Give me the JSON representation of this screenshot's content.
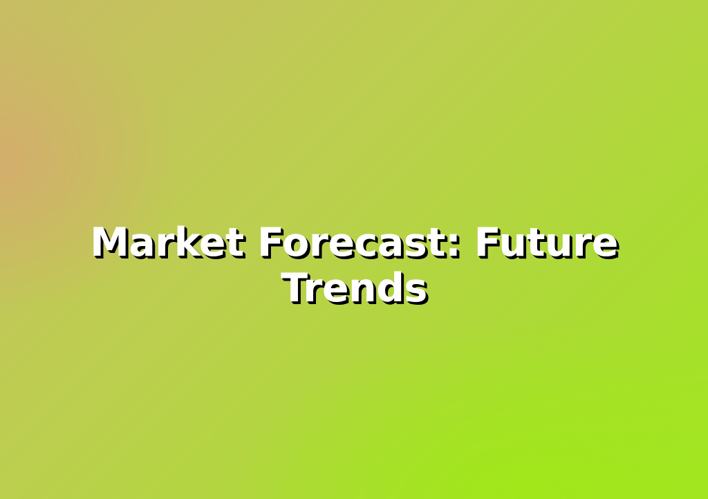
{
  "slide": {
    "title": "Market Forecast: Future Trends"
  },
  "colors": {
    "background_start": "#c8bc64",
    "background_end": "#a2e622",
    "title_text": "#ffffff",
    "title_shadow": "#000000"
  }
}
